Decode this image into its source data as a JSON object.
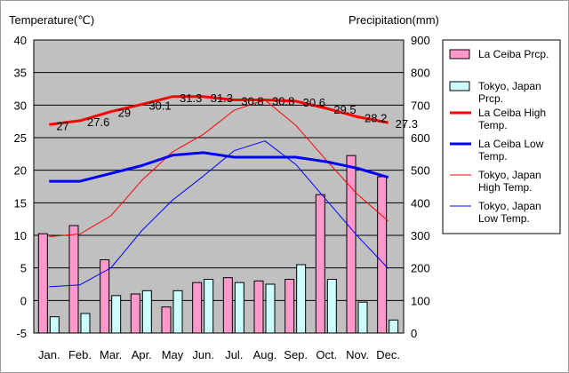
{
  "chart_data": {
    "type": "bar+line",
    "y_left_label": "Temperature(℃)",
    "y_right_label": "Precipitation(mm)",
    "ylim_left": [
      -5,
      40
    ],
    "ylim_right": [
      0,
      900
    ],
    "y_left_ticks": [
      -5,
      0,
      5,
      10,
      15,
      20,
      25,
      30,
      35,
      40
    ],
    "y_right_ticks": [
      0,
      100,
      200,
      300,
      400,
      500,
      600,
      700,
      800,
      900
    ],
    "categories": [
      "Jan.",
      "Feb.",
      "Mar.",
      "Apr.",
      "May",
      "Jun.",
      "Jul.",
      "Aug.",
      "Sep.",
      "Oct.",
      "Nov.",
      "Dec."
    ],
    "bar_series": [
      {
        "key": "laceiba_prcp",
        "name": "La Ceiba Prcp.",
        "color": "#ff99cc",
        "values": [
          305,
          330,
          225,
          120,
          80,
          155,
          170,
          160,
          165,
          425,
          545,
          480
        ]
      },
      {
        "key": "tokyo_prcp",
        "name": "Tokyo, Japan Prcp.",
        "color": "#ccffff",
        "values": [
          50,
          60,
          115,
          130,
          130,
          165,
          155,
          150,
          210,
          165,
          95,
          40
        ]
      }
    ],
    "line_series": [
      {
        "key": "laceiba_high",
        "name": "La Ceiba High Temp.",
        "color": "#ff0000",
        "width": 3,
        "values": [
          27,
          27.6,
          29,
          30.1,
          31.3,
          31.3,
          30.8,
          30.8,
          30.6,
          29.5,
          28.2,
          27.3
        ]
      },
      {
        "key": "laceiba_low",
        "name": "La Ceiba Low Temp.",
        "color": "#0000ff",
        "width": 3,
        "values": [
          18.3,
          18.3,
          19.5,
          20.7,
          22.3,
          22.7,
          22,
          22,
          22,
          21.3,
          20.3,
          18.9
        ]
      },
      {
        "key": "tokyo_high",
        "name": "Tokyo, Japan High Temp.",
        "color": "#ff0000",
        "width": 1,
        "values": [
          9.8,
          10.2,
          13,
          18.4,
          22.8,
          25.5,
          29.2,
          30.8,
          26.9,
          21.5,
          16.3,
          12.2
        ]
      },
      {
        "key": "tokyo_low",
        "name": "Tokyo, Japan Low Temp.",
        "color": "#0000ff",
        "width": 1,
        "values": [
          2.1,
          2.4,
          5,
          10.7,
          15.4,
          19.1,
          23,
          24.5,
          20.9,
          15.4,
          9.9,
          4.9
        ]
      }
    ],
    "data_labels": {
      "series": "laceiba_high",
      "values": [
        "27",
        "27.6",
        "29",
        "30.1",
        "31.3",
        "31.3",
        "30.8",
        "30.8",
        "30.6",
        "29.5",
        "28.2",
        "27.3"
      ]
    },
    "legend": [
      {
        "text": "La Ceiba Prcp.",
        "kind": "bar",
        "color": "#ff99cc"
      },
      {
        "text": "Tokyo, Japan Prcp.",
        "kind": "bar",
        "color": "#ccffff"
      },
      {
        "text": "La Ceiba High Temp.",
        "kind": "line",
        "color": "#ff0000",
        "width": 3
      },
      {
        "text": "La Ceiba Low Temp.",
        "kind": "line",
        "color": "#0000ff",
        "width": 3
      },
      {
        "text": "Tokyo, Japan High Temp.",
        "kind": "line",
        "color": "#ff0000",
        "width": 1
      },
      {
        "text": "Tokyo, Japan Low Temp.",
        "kind": "line",
        "color": "#0000ff",
        "width": 1
      }
    ],
    "legend_position": "right",
    "plot_background": "#c0c0c0",
    "grid": true
  }
}
